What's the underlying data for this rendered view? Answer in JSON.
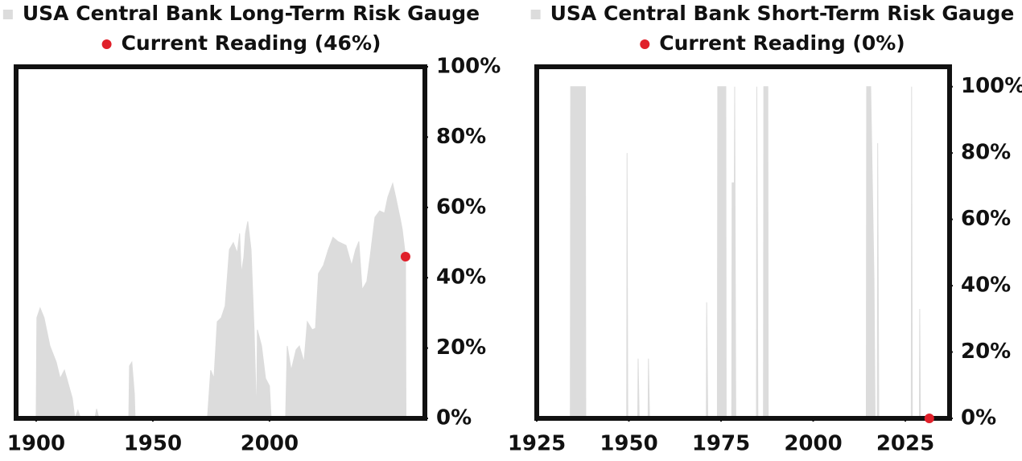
{
  "chart_data": [
    {
      "type": "area",
      "series": [
        {
          "name": "USA Central Bank Long-Term Risk Gauge",
          "color": "#dcdcdc",
          "x": [
            1900,
            1900.3,
            1901.7,
            1903.4,
            1905.9,
            1908.6,
            1910.3,
            1912.1,
            1913.1,
            1915.5,
            1916.6,
            1917.9,
            1919,
            1925.2,
            1925.9,
            1926.9,
            1939.7,
            1940,
            1941,
            1942.1,
            1942.4,
            1973.4,
            1974.8,
            1976.2,
            1977.6,
            1979.3,
            1981,
            1982.8,
            1984.5,
            1986.2,
            1987.2,
            1987.9,
            1989,
            1989.7,
            1990.7,
            1992.1,
            1993.4,
            1994.5,
            1994.8,
            1996.6,
            1998.3,
            2000,
            2000.7,
            2006.9,
            2007.6,
            2009.3,
            2011.4,
            2012.8,
            2014.8,
            2016.2,
            2018.3,
            2019.7,
            2021,
            2023.1,
            2025.2,
            2027.2,
            2029.3,
            2032.8,
            2035.2,
            2036.9,
            2038.3,
            2039.7,
            2041.7,
            2043.1,
            2045.2,
            2047.2,
            2049.3,
            2050.7,
            2052.8,
            2054.1,
            2055.9,
            2056.9,
            2058.3,
            2058.5
          ],
          "values": [
            0,
            28.6,
            31.4,
            28.6,
            20.6,
            16,
            11.4,
            13.7,
            11.4,
            5.7,
            0,
            2.3,
            0,
            0,
            2.7,
            0,
            0,
            14.9,
            16,
            6.9,
            0,
            0,
            13.7,
            11.4,
            27.5,
            28.6,
            32,
            48,
            50,
            47,
            52.6,
            41.2,
            45.8,
            52.6,
            56,
            48,
            25.2,
            0,
            25.2,
            20.6,
            11.4,
            9.2,
            0,
            0,
            20.6,
            13.7,
            19.5,
            20.6,
            16,
            27.5,
            25.2,
            25.6,
            41.2,
            43.5,
            48,
            51.5,
            50.3,
            49.2,
            43.5,
            48,
            50.3,
            36.6,
            38.9,
            45.8,
            57.2,
            59,
            58.4,
            62.9,
            66.8,
            62.9,
            57.2,
            53.8,
            46,
            0
          ]
        },
        {
          "name": "Current Reading (46%)",
          "color": "#e0202a",
          "type": "scatter",
          "x": [
            2058.3
          ],
          "values": [
            46
          ]
        }
      ],
      "xlim": [
        1891.4,
        2066.6
      ],
      "xticks": [
        1900,
        1950,
        2000
      ],
      "ylim": [
        0,
        100
      ],
      "yticks": [
        {
          "value": 0,
          "label": "0%"
        },
        {
          "value": 20,
          "label": "20%"
        },
        {
          "value": 40,
          "label": "40%"
        },
        {
          "value": 60,
          "label": "60%"
        },
        {
          "value": 80,
          "label": "80%"
        },
        {
          "value": 100,
          "label": "100%"
        }
      ]
    },
    {
      "type": "area",
      "series": [
        {
          "name": "USA Central Bank Short-Term Risk Gauge",
          "color": "#dcdcdc",
          "x": [
            1934.1,
            1934.2,
            1938.2,
            1938.3,
            1949.4,
            1949.5,
            1949.7,
            1952.4,
            1952.5,
            1952.8,
            1955.2,
            1955.3,
            1955.6,
            1971,
            1971.1,
            1971.4,
            1974,
            1974.1,
            1976.3,
            1976.4,
            1977.9,
            1978,
            1978.6,
            1978.7,
            1979,
            1984.6,
            1984.7,
            1985,
            1986.5,
            1986.6,
            1987.7,
            1987.8,
            2014.4,
            2014.5,
            2015.6,
            2016.5,
            2016.8,
            2017.4,
            2017.5,
            2017.8,
            2026.6,
            2026.7,
            2026.9,
            2028.8,
            2028.9,
            2029.1
          ],
          "values": [
            0,
            100,
            100,
            0,
            0,
            80,
            0,
            0,
            18,
            0,
            0,
            18,
            0,
            0,
            35,
            0,
            0,
            100,
            100,
            0,
            0,
            71,
            71,
            100,
            0,
            0,
            100,
            0,
            0,
            100,
            100,
            0,
            0,
            100,
            100,
            42,
            0,
            0,
            83,
            0,
            0,
            100,
            0,
            0,
            33,
            0
          ]
        },
        {
          "name": "Current Reading (0%)",
          "color": "#e0202a",
          "type": "scatter",
          "x": [
            2031.5
          ],
          "values": [
            0
          ]
        }
      ],
      "xlim": [
        1925,
        2037
      ],
      "xticks": [
        1925,
        1950,
        1975,
        2000,
        2025
      ],
      "ylim": [
        0,
        106
      ],
      "yticks": [
        {
          "value": 0,
          "label": "0%"
        },
        {
          "value": 20,
          "label": "20%"
        },
        {
          "value": 40,
          "label": "40%"
        },
        {
          "value": 60,
          "label": "60%"
        },
        {
          "value": 80,
          "label": "80%"
        },
        {
          "value": 100,
          "label": "100%"
        }
      ]
    }
  ]
}
